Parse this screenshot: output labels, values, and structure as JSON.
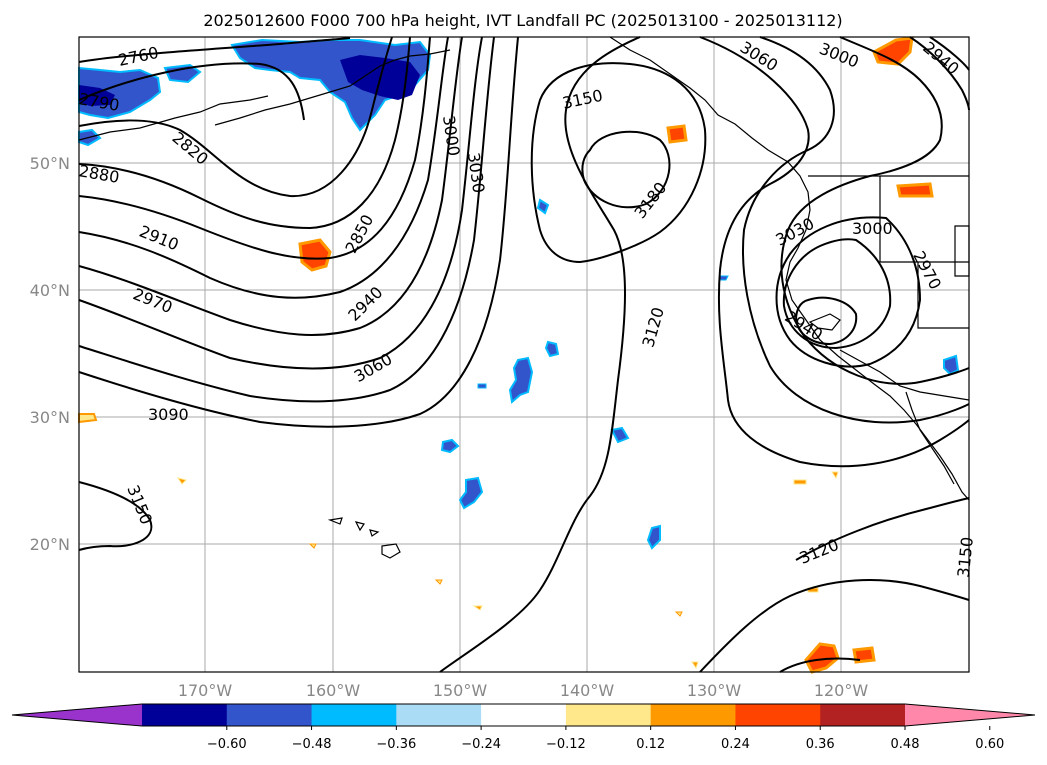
{
  "title": "2025012600 F000 700 hPa height, IVT Landfall PC (2025013100 - 2025013112)",
  "map": {
    "lat_labels": [
      "50°N",
      "40°N",
      "30°N",
      "20°N"
    ],
    "lon_labels": [
      "170°W",
      "160°W",
      "150°W",
      "140°W",
      "130°W",
      "120°W"
    ],
    "contour_labels": [
      "2760",
      "2790",
      "2820",
      "2850",
      "2880",
      "2910",
      "2940",
      "2940",
      "2940",
      "2970",
      "2970",
      "3000",
      "3000",
      "3000",
      "3030",
      "3030",
      "3060",
      "3060",
      "3090",
      "3120",
      "3120",
      "3150",
      "3150",
      "3150",
      "3180"
    ],
    "contour_interval": 30,
    "contour_color": "#000000",
    "land_outline_color": "#000000"
  },
  "colorbar": {
    "ticks": [
      "−0.60",
      "−0.48",
      "−0.36",
      "−0.24",
      "−0.12",
      "0.12",
      "0.24",
      "0.36",
      "0.48",
      "0.60"
    ],
    "colors": [
      "#9933cc",
      "#000099",
      "#3355cc",
      "#00bbff",
      "#aaddf5",
      "#ffffff",
      "#ffe88c",
      "#ff9900",
      "#ff4400",
      "#b22222",
      "#ff88aa"
    ],
    "extend": "both"
  }
}
